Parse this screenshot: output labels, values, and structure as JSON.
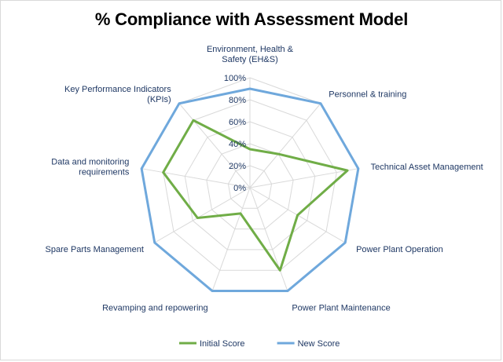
{
  "chart_data": {
    "type": "radar",
    "title": "% Compliance with Assessment Model",
    "categories": [
      [
        "Environment, Health &",
        "Safety (EH&S)"
      ],
      [
        "Personnel & training"
      ],
      [
        "Technical Asset Management"
      ],
      [
        "Power Plant Operation"
      ],
      [
        "Power Plant Maintenance"
      ],
      [
        "Revamping and repowering"
      ],
      [
        "Spare Parts Management"
      ],
      [
        "Data and monitoring",
        "requirements"
      ],
      [
        "Key Performance Indicators",
        "(KPIs)"
      ]
    ],
    "ticks": [
      "0%",
      "20%",
      "40%",
      "60%",
      "80%",
      "100%"
    ],
    "ylim": [
      0,
      100
    ],
    "grid": true,
    "legend_position": "bottom",
    "series": [
      {
        "name": "Initial Score",
        "color": "#70ad47",
        "values": [
          35,
          40,
          90,
          50,
          80,
          25,
          55,
          80,
          80
        ]
      },
      {
        "name": "New Score",
        "color": "#6fa8dc",
        "values": [
          90,
          100,
          100,
          100,
          100,
          100,
          100,
          100,
          100
        ]
      }
    ]
  }
}
